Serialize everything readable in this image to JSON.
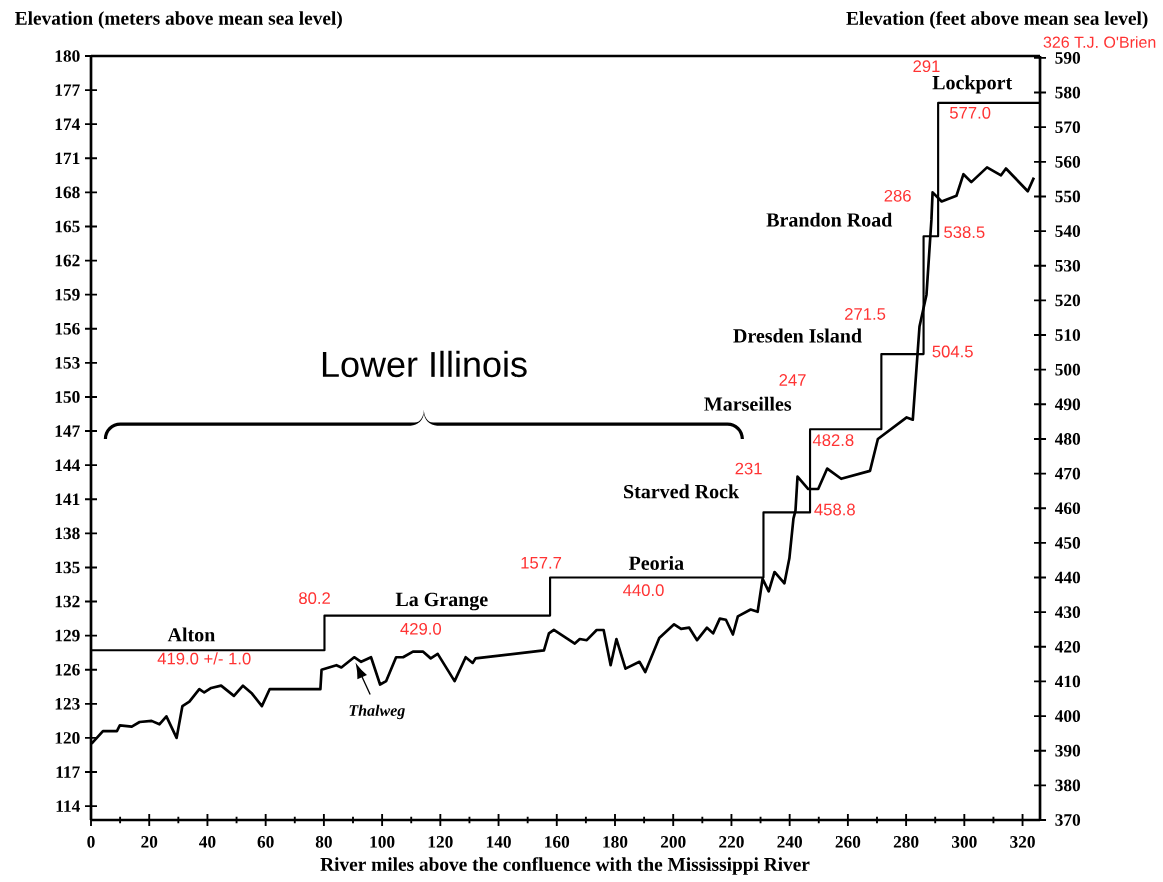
{
  "chart_data": {
    "type": "line",
    "xlabel": "River miles above the confluence with the Mississippi River",
    "ylabel": "Elevation (meters above mean sea level)",
    "y2label": "Elevation (feet above mean sea level)",
    "xlim": [
      0,
      326
    ],
    "xticks": [
      0,
      20,
      40,
      60,
      80,
      100,
      120,
      140,
      160,
      180,
      200,
      220,
      240,
      260,
      280,
      300,
      320
    ],
    "ylim": [
      112.78,
      180
    ],
    "yticks": [
      114,
      117,
      120,
      123,
      126,
      129,
      132,
      135,
      138,
      141,
      144,
      147,
      150,
      153,
      156,
      159,
      162,
      165,
      168,
      171,
      174,
      177,
      180
    ],
    "y2lim": [
      370,
      590.55
    ],
    "y2ticks": [
      370,
      380,
      390,
      400,
      410,
      420,
      430,
      440,
      450,
      460,
      470,
      480,
      490,
      500,
      510,
      520,
      530,
      540,
      550,
      560,
      570,
      580,
      590
    ],
    "series": [
      {
        "color": "#000000",
        "x": [
          0.2,
          4.1,
          8.9,
          9.9,
          14.0,
          16.7,
          20.8,
          23.5,
          25.9,
          29.4,
          31.4,
          33.8,
          37.2,
          38.9,
          41.3,
          44.7,
          49.1,
          52.2,
          55.3,
          58.7,
          61.4,
          64.5,
          78.8,
          79.2,
          84.3,
          86.0,
          90.4,
          92.8,
          96.2,
          99.3,
          101.4,
          104.8,
          107.2,
          110.6,
          114.0,
          116.7,
          119.1,
          124.9,
          128.7,
          131.1,
          132.1,
          155.6,
          157.3,
          159.0,
          166.2,
          167.9,
          170.3,
          173.7,
          176.1,
          178.5,
          180.5,
          183.6,
          188.4,
          190.4,
          195.2,
          200.3,
          202.7,
          205.5,
          208.2,
          211.6,
          213.7,
          216.0,
          218.1,
          220.5,
          222.2,
          226.6,
          229.0,
          230.7,
          232.8,
          234.8,
          238.2,
          239.9,
          241.3,
          242.0,
          242.7,
          246.4,
          249.8,
          252.9,
          257.7,
          267.6,
          270.3,
          280.2,
          282.3,
          284.6,
          287.0,
          288.7,
          289.1,
          292.2,
          297.3,
          299.7,
          302.4,
          307.8,
          312.6,
          314.3,
          321.8,
          323.9
        ],
        "values": [
          119.5,
          120.6,
          120.6,
          121.1,
          121.0,
          121.4,
          121.5,
          121.2,
          121.9,
          120.0,
          122.8,
          123.2,
          124.3,
          124.0,
          124.4,
          124.6,
          123.7,
          124.6,
          123.9,
          122.8,
          124.3,
          124.3,
          124.3,
          126.0,
          126.4,
          126.2,
          127.1,
          126.7,
          127.1,
          124.7,
          125.0,
          127.1,
          127.1,
          127.6,
          127.6,
          127.0,
          127.4,
          125.0,
          127.1,
          126.6,
          127.0,
          127.7,
          129.2,
          129.5,
          128.3,
          128.7,
          128.6,
          129.5,
          129.5,
          126.4,
          128.7,
          126.1,
          126.7,
          125.8,
          128.8,
          130.0,
          129.6,
          129.7,
          128.6,
          129.7,
          129.2,
          130.5,
          130.4,
          129.1,
          130.7,
          131.3,
          131.1,
          134.0,
          132.9,
          134.6,
          133.6,
          135.8,
          139.3,
          140.0,
          143.0,
          141.9,
          141.9,
          143.7,
          142.8,
          143.5,
          146.3,
          148.2,
          148.0,
          156.2,
          159.0,
          165.6,
          168.0,
          167.2,
          167.7,
          169.6,
          168.9,
          170.2,
          169.5,
          170.1,
          168.1,
          169.3
        ]
      },
      {
        "type": "step",
        "axis": "y2",
        "color": "#000000",
        "x": [
          0,
          80.2,
          157.7,
          231,
          247,
          271.5,
          286,
          291,
          326
        ],
        "values": [
          419.0,
          429.0,
          440.0,
          458.8,
          482.8,
          504.5,
          538.5,
          577.0,
          577.0
        ]
      }
    ],
    "annotations": [
      "Alton",
      "La Grange",
      "Peoria",
      "Starved Rock",
      "Marseilles",
      "Dresden Island",
      "Brandon Road",
      "Lockport",
      "419.0 +/- 1.0",
      "80.2",
      "429.0",
      "157.7",
      "440.0",
      "231",
      "458.8",
      "247",
      "482.8",
      "271.5",
      "504.5",
      "286",
      "538.5",
      "291",
      "577.0",
      "Lower Illinois",
      {
        "text": "Thalweg",
        "x": 90.4,
        "y": 127.1
      },
      "326 T.J. O'Brien"
    ]
  }
}
